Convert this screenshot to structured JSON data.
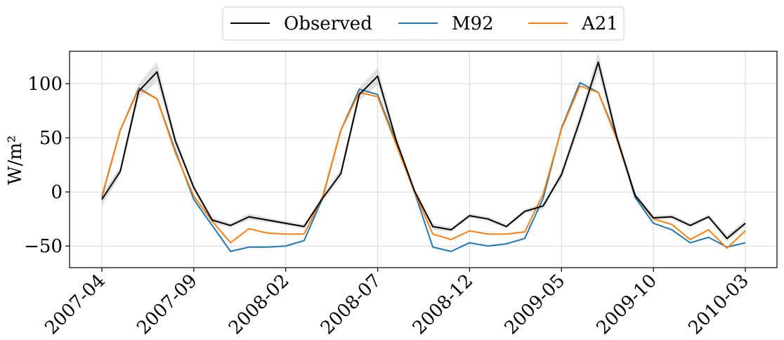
{
  "chart_data": {
    "type": "line",
    "title": "",
    "xlabel": "",
    "ylabel": "W/m²",
    "ylim": [
      -70,
      130
    ],
    "yticks": [
      -50,
      0,
      50,
      100
    ],
    "ytick_labels": [
      "−50",
      "0",
      "50",
      "100"
    ],
    "xticks": [
      "2007-04",
      "2007-09",
      "2008-02",
      "2008-07",
      "2008-12",
      "2009-05",
      "2009-10",
      "2010-03"
    ],
    "grid": true,
    "legend": {
      "placement": "top-center",
      "columns": 3
    },
    "x": [
      "2007-04",
      "2007-05",
      "2007-06",
      "2007-07",
      "2007-08",
      "2007-09",
      "2007-10",
      "2007-11",
      "2007-12",
      "2008-01",
      "2008-02",
      "2008-03",
      "2008-04",
      "2008-05",
      "2008-06",
      "2008-07",
      "2008-08",
      "2008-09",
      "2008-10",
      "2008-11",
      "2008-12",
      "2009-01",
      "2009-02",
      "2009-03",
      "2009-04",
      "2009-05",
      "2009-06",
      "2009-07",
      "2009-08",
      "2009-09",
      "2009-10",
      "2009-11",
      "2009-12",
      "2010-01",
      "2010-02",
      "2010-03"
    ],
    "series": [
      {
        "name": "Observed",
        "color": "#000000",
        "values": [
          -7,
          19,
          93,
          111,
          47,
          4,
          -26,
          -31,
          -23,
          -26,
          -29,
          -32,
          -6,
          17,
          90,
          107,
          48,
          1,
          -32,
          -35,
          -22,
          -25,
          -32,
          -18,
          -13,
          16,
          66,
          120,
          51,
          -3,
          -24,
          -23,
          -31,
          -23,
          -43,
          -29
        ],
        "band": [
          6,
          4,
          7,
          9,
          5,
          3,
          3,
          2,
          3,
          2,
          2,
          2,
          3,
          4,
          6,
          8,
          5,
          3,
          3,
          2,
          2,
          2,
          2,
          2,
          3,
          4,
          6,
          9,
          5,
          3,
          2,
          2,
          2,
          2,
          3,
          3
        ]
      },
      {
        "name": "M92",
        "color": "#1f77b4",
        "values": [
          -5,
          57,
          96,
          86,
          38,
          -7,
          -31,
          -55,
          -51,
          -51,
          -50,
          -45,
          -6,
          57,
          95,
          90,
          46,
          0,
          -51,
          -55,
          -47,
          -50,
          -48,
          -43,
          -6,
          59,
          101,
          92,
          51,
          -5,
          -29,
          -35,
          -47,
          -42,
          -51,
          -47
        ]
      },
      {
        "name": "A21",
        "color": "#ff7f0e",
        "values": [
          -4,
          57,
          95,
          86,
          36,
          -4,
          -27,
          -47,
          -34,
          -38,
          -39,
          -39,
          -5,
          57,
          92,
          88,
          44,
          0,
          -39,
          -44,
          -36,
          -39,
          -39,
          -37,
          -2,
          58,
          98,
          92,
          49,
          -3,
          -25,
          -30,
          -44,
          -35,
          -52,
          -36
        ]
      }
    ]
  }
}
